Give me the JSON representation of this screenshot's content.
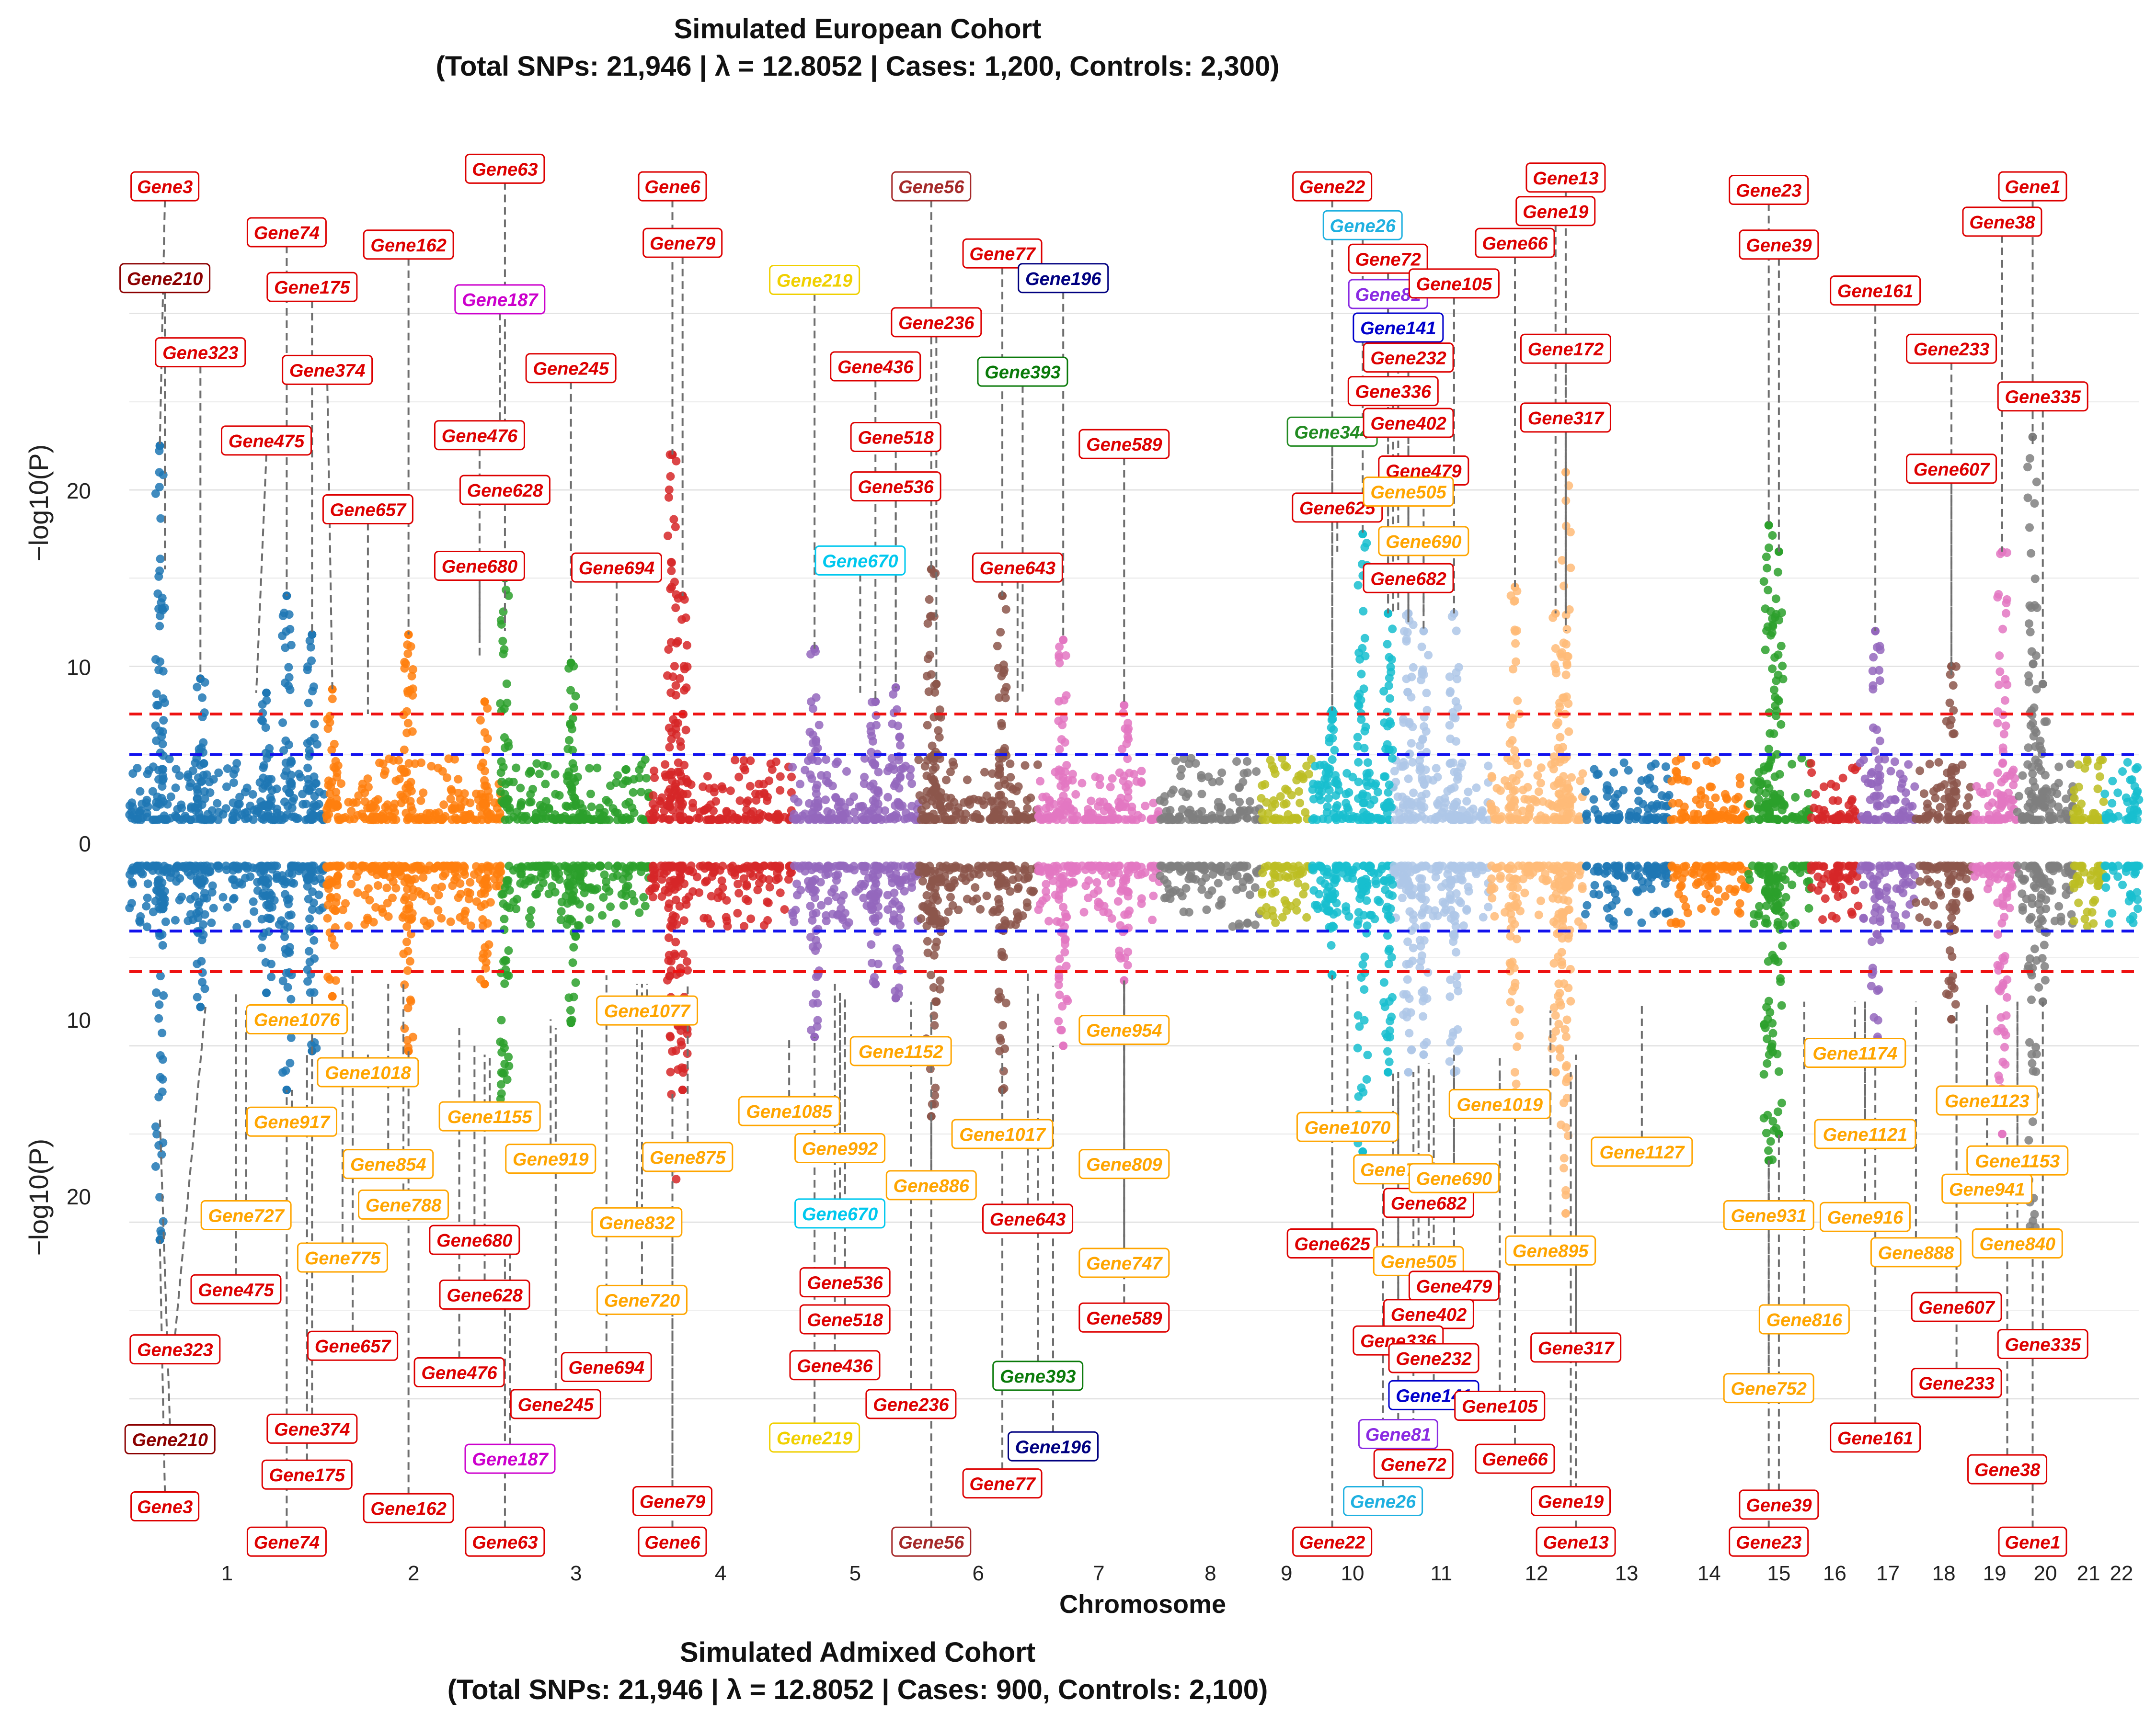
{
  "chart_data": {
    "type": "scatter",
    "subtype": "miami-plot",
    "colors": [
      "#1f77b4",
      "#ff7f0e",
      "#2ca02c",
      "#d62728",
      "#9467bd",
      "#8c564b",
      "#e377c2",
      "#7f7f7f",
      "#bcbd22",
      "#17becf",
      "#aec7e8",
      "#ffbb78"
    ],
    "chromosomes": [
      "1",
      "2",
      "3",
      "4",
      "5",
      "6",
      "7",
      "8",
      "9",
      "10",
      "11",
      "12",
      "13",
      "14",
      "15",
      "16",
      "17",
      "18",
      "19",
      "20",
      "21",
      "22"
    ],
    "chrom_bounds": [
      [
        0,
        0.385
      ],
      [
        0.385,
        0.735
      ],
      [
        0.735,
        1.025
      ],
      [
        1.025,
        1.305
      ],
      [
        1.305,
        1.555
      ],
      [
        1.555,
        1.79
      ],
      [
        1.79,
        2.03
      ],
      [
        2.03,
        2.23
      ],
      [
        2.23,
        2.33
      ],
      [
        2.33,
        2.49
      ],
      [
        2.49,
        2.68
      ],
      [
        2.68,
        2.865
      ],
      [
        2.865,
        3.035
      ],
      [
        3.035,
        3.19
      ],
      [
        3.19,
        3.31
      ],
      [
        3.31,
        3.41
      ],
      [
        3.41,
        3.52
      ],
      [
        3.52,
        3.63
      ],
      [
        3.63,
        3.72
      ],
      [
        3.72,
        3.83
      ],
      [
        3.83,
        3.89
      ],
      [
        3.89,
        3.96
      ]
    ],
    "gap_range": [
      2.23,
      2.33
    ],
    "xlabel": "Chromosome",
    "top": {
      "title_line1": "Simulated European Cohort",
      "title_line2": "(Total SNPs: 21,946 | λ = 12.8052 | Cases: 1,200, Controls: 2,300)",
      "ylabel": "−log10(P)",
      "yticks": [
        0,
        10,
        20
      ],
      "ylim": [
        0,
        38.5
      ],
      "genome_wide_threshold": 7.3,
      "suggestive_threshold": 5.0
    },
    "bottom": {
      "title_line1": "Simulated Admixed Cohort",
      "title_line2": "(Total SNPs: 21,946 | λ = 12.8052 | Cases: 900, Controls: 2,100)",
      "ylabel": "−log10(P)",
      "yticks": [
        10,
        20
      ],
      "ylim": [
        0,
        38.5
      ],
      "genome_wide_threshold": 7.3,
      "suggestive_threshold": 5.0
    },
    "label_colors": {
      "r": "#dd0000",
      "d": "#8b0000",
      "b": "#a52a2a",
      "o": "#ffa500",
      "y": "#f0d000",
      "c": "#00c8ee",
      "m": "#cc00cc",
      "p": "#8a2be2",
      "n": "#0000cc",
      "v": "#000080",
      "g": "#0a7a0a",
      "s": "#228b22",
      "t": "#1fb0e0"
    },
    "top_labels": [
      [
        "Gene3",
        0.07,
        37.2,
        0.06,
        22.5,
        "r"
      ],
      [
        "Gene210",
        0.07,
        32.0,
        0.07,
        15.5,
        "d"
      ],
      [
        "Gene323",
        0.14,
        27.8,
        0.14,
        9.3,
        "r"
      ],
      [
        "Gene475",
        0.27,
        22.8,
        0.25,
        8.5,
        "r"
      ],
      [
        "Gene74",
        0.31,
        34.6,
        0.31,
        14.0,
        "r"
      ],
      [
        "Gene175",
        0.36,
        31.5,
        0.36,
        11.8,
        "r"
      ],
      [
        "Gene374",
        0.39,
        26.8,
        0.4,
        8.7,
        "r"
      ],
      [
        "Gene657",
        0.47,
        18.9,
        0.47,
        7.3,
        "r"
      ],
      [
        "Gene162",
        0.55,
        33.9,
        0.55,
        11.8,
        "r"
      ],
      [
        "Gene63",
        0.74,
        38.2,
        0.74,
        22.5,
        "r"
      ],
      [
        "Gene187",
        0.73,
        30.8,
        0.73,
        22.5,
        "m"
      ],
      [
        "Gene476",
        0.69,
        23.1,
        0.69,
        10.5,
        "r"
      ],
      [
        "Gene628",
        0.74,
        20.0,
        0.74,
        12.0,
        "r"
      ],
      [
        "Gene680",
        0.69,
        15.7,
        0.69,
        11.5,
        "r"
      ],
      [
        "Gene245",
        0.87,
        26.9,
        0.87,
        10.5,
        "r"
      ],
      [
        "Gene694",
        0.96,
        15.6,
        0.96,
        7.5,
        "r"
      ],
      [
        "Gene6",
        1.07,
        37.2,
        1.07,
        22.0,
        "r"
      ],
      [
        "Gene79",
        1.09,
        34.0,
        1.09,
        14.0,
        "r"
      ],
      [
        "Gene219",
        1.35,
        31.9,
        1.35,
        11.0,
        "y"
      ],
      [
        "Gene670",
        1.44,
        16.0,
        1.44,
        8.5,
        "c"
      ],
      [
        "Gene436",
        1.47,
        27.0,
        1.47,
        8.0,
        "r"
      ],
      [
        "Gene518",
        1.51,
        23.0,
        1.51,
        8.8,
        "r"
      ],
      [
        "Gene536",
        1.51,
        20.2,
        1.51,
        8.8,
        "r"
      ],
      [
        "Gene56",
        1.58,
        37.2,
        1.58,
        15.5,
        "b"
      ],
      [
        "Gene236",
        1.59,
        29.5,
        1.59,
        9.0,
        "r"
      ],
      [
        "Gene77",
        1.72,
        33.4,
        1.72,
        14.0,
        "r"
      ],
      [
        "Gene196",
        1.84,
        32.0,
        1.84,
        11.5,
        "v"
      ],
      [
        "Gene393",
        1.76,
        26.7,
        1.76,
        8.5,
        "g"
      ],
      [
        "Gene643",
        1.75,
        15.6,
        1.75,
        7.3,
        "r"
      ],
      [
        "Gene589",
        1.96,
        22.6,
        1.96,
        7.8,
        "r"
      ],
      [
        "Gene22",
        2.37,
        37.2,
        2.37,
        7.5,
        "r"
      ],
      [
        "Gene26",
        2.43,
        35.0,
        2.43,
        17.5,
        "t"
      ],
      [
        "Gene344",
        2.37,
        23.3,
        2.37,
        7.5,
        "s"
      ],
      [
        "Gene625",
        2.38,
        19.0,
        2.38,
        16.5,
        "r"
      ],
      [
        "Gene72",
        2.48,
        33.1,
        2.48,
        13.0,
        "r"
      ],
      [
        "Gene81",
        2.48,
        31.1,
        2.48,
        13.5,
        "p"
      ],
      [
        "Gene141",
        2.5,
        29.2,
        2.5,
        13.0,
        "n"
      ],
      [
        "Gene232",
        2.52,
        27.5,
        2.52,
        13.0,
        "r"
      ],
      [
        "Gene336",
        2.49,
        25.6,
        2.49,
        13.0,
        "r"
      ],
      [
        "Gene402",
        2.52,
        23.8,
        2.52,
        12.5,
        "r"
      ],
      [
        "Gene479",
        2.55,
        21.1,
        2.55,
        12.0,
        "r"
      ],
      [
        "Gene505",
        2.52,
        19.9,
        2.52,
        12.5,
        "o"
      ],
      [
        "Gene690",
        2.55,
        17.1,
        2.55,
        13.0,
        "o"
      ],
      [
        "Gene682",
        2.52,
        15.0,
        2.52,
        13.0,
        "r"
      ],
      [
        "Gene105",
        2.61,
        31.7,
        2.61,
        13.0,
        "r"
      ],
      [
        "Gene66",
        2.73,
        34.0,
        2.73,
        14.5,
        "r"
      ],
      [
        "Gene19",
        2.81,
        35.8,
        2.81,
        13.0,
        "r"
      ],
      [
        "Gene13",
        2.83,
        37.7,
        2.83,
        13.0,
        "r"
      ],
      [
        "Gene172",
        2.83,
        28.0,
        2.83,
        13.0,
        "r"
      ],
      [
        "Gene317",
        2.83,
        24.1,
        2.83,
        12.0,
        "r"
      ],
      [
        "Gene23",
        3.23,
        37.0,
        3.23,
        18.0,
        "r"
      ],
      [
        "Gene39",
        3.25,
        33.9,
        3.25,
        16.5,
        "r"
      ],
      [
        "Gene161",
        3.44,
        31.3,
        3.44,
        12.0,
        "r"
      ],
      [
        "Gene233",
        3.59,
        28.0,
        3.59,
        10.0,
        "r"
      ],
      [
        "Gene607",
        3.59,
        21.2,
        3.59,
        9.5,
        "r"
      ],
      [
        "Gene38",
        3.69,
        35.2,
        3.69,
        16.5,
        "r"
      ],
      [
        "Gene1",
        3.75,
        37.2,
        3.75,
        22.5,
        "r"
      ],
      [
        "Gene335",
        3.77,
        25.3,
        3.77,
        9.0,
        "r"
      ]
    ],
    "bottom_labels": [
      [
        "Gene1076",
        0.33,
        10.0,
        0.33,
        9.5,
        "o"
      ],
      [
        "Gene917",
        0.32,
        15.8,
        0.32,
        14.0,
        "o"
      ],
      [
        "Gene727",
        0.23,
        21.1,
        0.23,
        9.5,
        "o"
      ],
      [
        "Gene475",
        0.21,
        25.3,
        0.21,
        8.5,
        "r"
      ],
      [
        "Gene323",
        0.09,
        28.7,
        0.15,
        9.3,
        "r"
      ],
      [
        "Gene210",
        0.08,
        33.8,
        0.06,
        15.5,
        "d"
      ],
      [
        "Gene3",
        0.07,
        37.6,
        0.06,
        22.5,
        "r"
      ],
      [
        "Gene74",
        0.31,
        39.6,
        0.31,
        14.0,
        "r"
      ],
      [
        "Gene175",
        0.35,
        35.8,
        0.35,
        11.8,
        "r"
      ],
      [
        "Gene374",
        0.36,
        33.2,
        0.36,
        8.7,
        "r"
      ],
      [
        "Gene657",
        0.44,
        28.5,
        0.44,
        7.3,
        "r"
      ],
      [
        "Gene775",
        0.42,
        23.5,
        0.42,
        8.0,
        "o"
      ],
      [
        "Gene1018",
        0.47,
        13.0,
        0.47,
        12.0,
        "o"
      ],
      [
        "Gene854",
        0.51,
        18.2,
        0.51,
        8.0,
        "o"
      ],
      [
        "Gene788",
        0.54,
        20.5,
        0.54,
        8.0,
        "o"
      ],
      [
        "Gene162",
        0.55,
        37.7,
        0.55,
        11.8,
        "r"
      ],
      [
        "Gene1155",
        0.71,
        15.5,
        0.71,
        12.0,
        "o"
      ],
      [
        "Gene919",
        0.83,
        17.9,
        0.83,
        10.0,
        "o"
      ],
      [
        "Gene680",
        0.68,
        22.5,
        0.68,
        11.5,
        "r"
      ],
      [
        "Gene628",
        0.7,
        25.6,
        0.7,
        12.0,
        "r"
      ],
      [
        "Gene476",
        0.65,
        30.0,
        0.65,
        10.5,
        "r"
      ],
      [
        "Gene187",
        0.75,
        34.9,
        0.75,
        22.5,
        "m"
      ],
      [
        "Gene63",
        0.74,
        39.6,
        0.74,
        22.5,
        "r"
      ],
      [
        "Gene245",
        0.84,
        31.8,
        0.84,
        10.5,
        "r"
      ],
      [
        "Gene694",
        0.94,
        29.7,
        0.94,
        7.5,
        "r"
      ],
      [
        "Gene1077",
        1.02,
        9.5,
        1.02,
        8.0,
        "o"
      ],
      [
        "Gene832",
        1.0,
        21.5,
        1.0,
        8.0,
        "o"
      ],
      [
        "Gene720",
        1.01,
        25.9,
        1.01,
        8.0,
        "o"
      ],
      [
        "Gene875",
        1.1,
        17.8,
        1.1,
        8.0,
        "o"
      ],
      [
        "Gene79",
        1.07,
        37.3,
        1.07,
        14.0,
        "r"
      ],
      [
        "Gene6",
        1.07,
        39.6,
        1.07,
        22.0,
        "r"
      ],
      [
        "Gene1085",
        1.3,
        15.2,
        1.3,
        11.0,
        "o"
      ],
      [
        "Gene992",
        1.4,
        17.3,
        1.4,
        8.5,
        "o"
      ],
      [
        "Gene670",
        1.4,
        21.0,
        1.4,
        8.5,
        "c"
      ],
      [
        "Gene536",
        1.41,
        24.9,
        1.41,
        8.8,
        "r"
      ],
      [
        "Gene518",
        1.41,
        27.0,
        1.41,
        8.8,
        "r"
      ],
      [
        "Gene436",
        1.39,
        29.6,
        1.39,
        8.0,
        "r"
      ],
      [
        "Gene219",
        1.35,
        33.7,
        1.35,
        11.0,
        "y"
      ],
      [
        "Gene1152",
        1.52,
        11.8,
        1.52,
        11.0,
        "o"
      ],
      [
        "Gene886",
        1.58,
        19.4,
        1.58,
        9.0,
        "o"
      ],
      [
        "Gene236",
        1.54,
        31.8,
        1.54,
        9.0,
        "r"
      ],
      [
        "Gene56",
        1.58,
        39.6,
        1.58,
        15.5,
        "b"
      ],
      [
        "Gene1017",
        1.72,
        16.5,
        1.72,
        12.0,
        "o"
      ],
      [
        "Gene643",
        1.77,
        21.3,
        1.77,
        7.3,
        "r"
      ],
      [
        "Gene393",
        1.79,
        30.2,
        1.79,
        8.5,
        "g"
      ],
      [
        "Gene196",
        1.82,
        34.2,
        1.82,
        11.5,
        "v"
      ],
      [
        "Gene77",
        1.72,
        36.3,
        1.72,
        14.0,
        "r"
      ],
      [
        "Gene954",
        1.96,
        10.6,
        1.96,
        7.8,
        "o"
      ],
      [
        "Gene809",
        1.96,
        18.2,
        1.96,
        7.8,
        "o"
      ],
      [
        "Gene747",
        1.96,
        23.8,
        1.96,
        7.8,
        "o"
      ],
      [
        "Gene589",
        1.96,
        26.9,
        1.96,
        7.8,
        "r"
      ],
      [
        "Gene1070",
        2.4,
        16.1,
        2.4,
        7.5,
        "o"
      ],
      [
        "Gene70",
        2.49,
        18.5,
        2.49,
        13.0,
        "o"
      ],
      [
        "Gene625",
        2.37,
        22.7,
        2.37,
        16.5,
        "r"
      ],
      [
        "Gene682",
        2.56,
        20.4,
        2.56,
        13.0,
        "r"
      ],
      [
        "Gene690",
        2.61,
        19.0,
        2.61,
        13.0,
        "o"
      ],
      [
        "Gene505",
        2.54,
        23.7,
        2.54,
        12.5,
        "o"
      ],
      [
        "Gene479",
        2.61,
        25.1,
        2.61,
        12.0,
        "r"
      ],
      [
        "Gene402",
        2.56,
        26.7,
        2.56,
        12.5,
        "r"
      ],
      [
        "Gene336",
        2.5,
        28.2,
        2.5,
        13.0,
        "r"
      ],
      [
        "Gene232",
        2.57,
        29.2,
        2.57,
        13.0,
        "r"
      ],
      [
        "Gene141",
        2.57,
        31.3,
        2.57,
        13.0,
        "n"
      ],
      [
        "Gene81",
        2.5,
        33.5,
        2.5,
        13.5,
        "p"
      ],
      [
        "Gene72",
        2.53,
        35.2,
        2.53,
        13.0,
        "r"
      ],
      [
        "Gene26",
        2.47,
        37.3,
        2.47,
        17.5,
        "t"
      ],
      [
        "Gene22",
        2.37,
        39.6,
        2.37,
        7.5,
        "r"
      ],
      [
        "Gene1019",
        2.7,
        14.8,
        2.7,
        12.0,
        "o"
      ],
      [
        "Gene105",
        2.7,
        31.9,
        2.7,
        13.0,
        "r"
      ],
      [
        "Gene66",
        2.73,
        34.9,
        2.73,
        14.5,
        "r"
      ],
      [
        "Gene895",
        2.8,
        23.1,
        2.8,
        9.5,
        "o"
      ],
      [
        "Gene317",
        2.85,
        28.6,
        2.85,
        12.0,
        "r"
      ],
      [
        "Gene19",
        2.84,
        37.3,
        2.84,
        13.0,
        "r"
      ],
      [
        "Gene13",
        2.85,
        39.6,
        2.85,
        13.0,
        "r"
      ],
      [
        "Gene1127",
        2.98,
        17.5,
        2.98,
        9.0,
        "o"
      ],
      [
        "Gene931",
        3.23,
        21.1,
        3.23,
        18.0,
        "o"
      ],
      [
        "Gene816",
        3.3,
        27.0,
        3.3,
        9.0,
        "o"
      ],
      [
        "Gene752",
        3.23,
        30.9,
        3.23,
        18.0,
        "o"
      ],
      [
        "Gene39",
        3.25,
        37.5,
        3.25,
        16.5,
        "r"
      ],
      [
        "Gene23",
        3.23,
        39.6,
        3.23,
        18.0,
        "r"
      ],
      [
        "Gene1174",
        3.4,
        11.9,
        3.4,
        9.0,
        "o"
      ],
      [
        "Gene1121",
        3.42,
        16.5,
        3.42,
        9.0,
        "o"
      ],
      [
        "Gene916",
        3.42,
        21.2,
        3.42,
        9.0,
        "o"
      ],
      [
        "Gene888",
        3.52,
        23.2,
        3.52,
        9.0,
        "o"
      ],
      [
        "Gene161",
        3.44,
        33.7,
        3.44,
        12.0,
        "r"
      ],
      [
        "Gene1123",
        3.66,
        14.6,
        3.66,
        9.0,
        "o"
      ],
      [
        "Gene941",
        3.66,
        19.6,
        3.66,
        9.0,
        "o"
      ],
      [
        "Gene607",
        3.6,
        26.3,
        3.6,
        9.5,
        "r"
      ],
      [
        "Gene233",
        3.6,
        30.6,
        3.6,
        10.0,
        "r"
      ],
      [
        "Gene38",
        3.7,
        35.5,
        3.7,
        16.5,
        "r"
      ],
      [
        "Gene1153",
        3.72,
        18.0,
        3.72,
        9.0,
        "o"
      ],
      [
        "Gene840",
        3.72,
        22.7,
        3.72,
        9.0,
        "o"
      ],
      [
        "Gene335",
        3.77,
        28.4,
        3.77,
        9.0,
        "r"
      ],
      [
        "Gene1",
        3.75,
        39.6,
        3.75,
        22.5,
        "r"
      ]
    ],
    "peaks": [
      [
        0.06,
        22.5
      ],
      [
        0.14,
        9.3
      ],
      [
        0.27,
        8.5
      ],
      [
        0.31,
        14.0
      ],
      [
        0.36,
        11.8
      ],
      [
        0.4,
        8.7
      ],
      [
        0.55,
        11.8
      ],
      [
        0.7,
        8.0
      ],
      [
        0.74,
        15.0
      ],
      [
        0.87,
        10.2
      ],
      [
        1.07,
        22.0
      ],
      [
        1.09,
        14.0
      ],
      [
        1.35,
        11.0
      ],
      [
        1.47,
        8.0
      ],
      [
        1.51,
        8.8
      ],
      [
        1.58,
        15.5
      ],
      [
        1.59,
        9.0
      ],
      [
        1.72,
        14.0
      ],
      [
        1.84,
        11.5
      ],
      [
        1.96,
        7.8
      ],
      [
        2.37,
        7.5
      ],
      [
        2.43,
        17.5
      ],
      [
        2.48,
        13.0
      ],
      [
        2.52,
        13.0
      ],
      [
        2.55,
        12.0
      ],
      [
        2.61,
        13.0
      ],
      [
        2.73,
        14.5
      ],
      [
        2.81,
        13.0
      ],
      [
        2.83,
        21.0
      ],
      [
        3.23,
        18.0
      ],
      [
        3.25,
        16.5
      ],
      [
        3.44,
        12.0
      ],
      [
        3.59,
        10.0
      ],
      [
        3.69,
        16.5
      ],
      [
        3.75,
        23.0
      ],
      [
        3.77,
        9.0
      ]
    ]
  }
}
